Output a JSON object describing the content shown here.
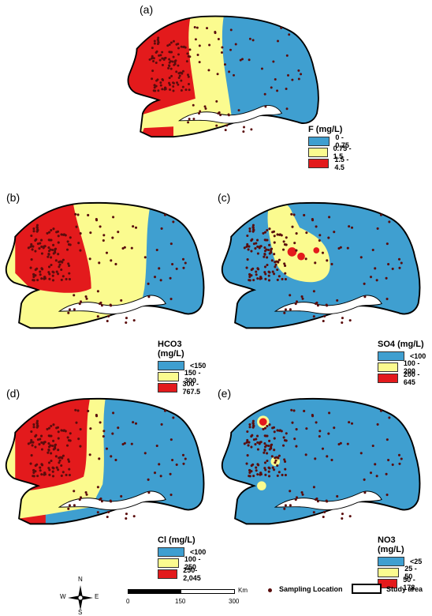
{
  "colors": {
    "blue": "#3f9fd0",
    "yellow": "#fbfb8f",
    "red": "#e31a1c",
    "dot": "#5a0d0d",
    "river": "#ffffff"
  },
  "panels": {
    "a": {
      "label": "(a)",
      "legend_title": "F (mg/L)",
      "classes": [
        "0 - 0.75",
        "0.75 - 1.5",
        "1.5 - 4.5"
      ]
    },
    "b": {
      "label": "(b)",
      "legend_title": "HCO3 (mg/L)",
      "classes": [
        "<150",
        "150 - 300",
        "300 - 767.5"
      ]
    },
    "c": {
      "label": "(c)",
      "legend_title": "SO4 (mg/L)",
      "classes": [
        "<100",
        "100 - 200",
        "200 - 645"
      ]
    },
    "d": {
      "label": "(d)",
      "legend_title": "Cl (mg/L)",
      "classes": [
        "<100",
        "100 - 250",
        "250- 2,045"
      ]
    },
    "e": {
      "label": "(e)",
      "legend_title": "NO3 (mg/L)",
      "classes": [
        "<25",
        "25 - 50",
        "50 - 178"
      ]
    }
  },
  "scale": {
    "unit": "Km",
    "ticks": [
      "0",
      "150",
      "300"
    ]
  },
  "compass": {
    "n": "N",
    "s": "S",
    "e": "E",
    "w": "W"
  },
  "footer": {
    "sampling_label": "Sampling Location",
    "study_area_label": "Study area"
  }
}
